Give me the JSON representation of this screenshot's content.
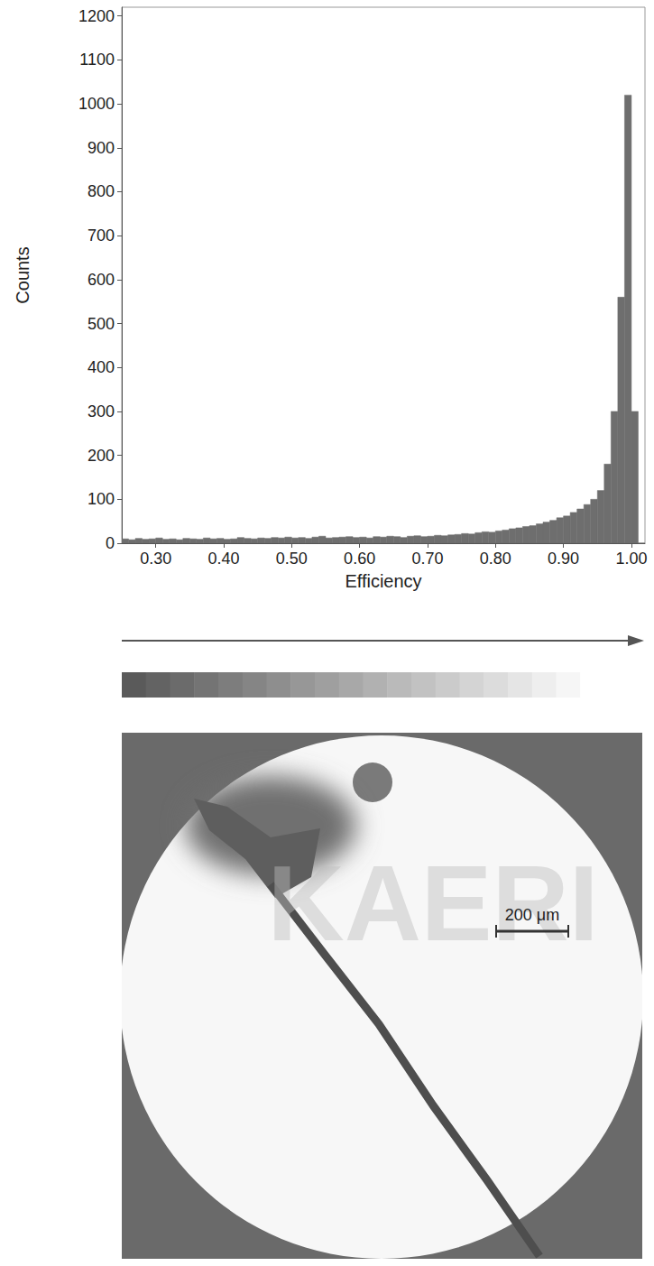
{
  "chart_data": {
    "type": "histogram",
    "x_label": "Efficiency",
    "y_label": "Counts",
    "bins": [
      0.25,
      0.26,
      0.27,
      0.28,
      0.29,
      0.3,
      0.31,
      0.32,
      0.33,
      0.34,
      0.35,
      0.36,
      0.37,
      0.38,
      0.39,
      0.4,
      0.41,
      0.42,
      0.43,
      0.44,
      0.45,
      0.46,
      0.47,
      0.48,
      0.49,
      0.5,
      0.51,
      0.52,
      0.53,
      0.54,
      0.55,
      0.56,
      0.57,
      0.58,
      0.59,
      0.6,
      0.61,
      0.62,
      0.63,
      0.64,
      0.65,
      0.66,
      0.67,
      0.68,
      0.69,
      0.7,
      0.71,
      0.72,
      0.73,
      0.74,
      0.75,
      0.76,
      0.77,
      0.78,
      0.79,
      0.8,
      0.81,
      0.82,
      0.83,
      0.84,
      0.85,
      0.86,
      0.87,
      0.88,
      0.89,
      0.9,
      0.91,
      0.92,
      0.93,
      0.94,
      0.95,
      0.96,
      0.97,
      0.98,
      0.99,
      1.0,
      1.01,
      1.02
    ],
    "counts": [
      10,
      8,
      11,
      9,
      10,
      12,
      9,
      10,
      8,
      11,
      10,
      9,
      12,
      10,
      11,
      9,
      10,
      13,
      11,
      10,
      12,
      11,
      13,
      12,
      14,
      12,
      13,
      11,
      14,
      16,
      12,
      13,
      14,
      15,
      13,
      14,
      12,
      15,
      14,
      16,
      15,
      13,
      16,
      17,
      15,
      16,
      18,
      17,
      19,
      20,
      22,
      21,
      24,
      26,
      25,
      28,
      30,
      33,
      35,
      38,
      40,
      44,
      48,
      52,
      58,
      62,
      70,
      78,
      88,
      100,
      120,
      180,
      300,
      560,
      1020,
      300,
      0
    ],
    "color": "#6e6e6e",
    "xlim": [
      0.25,
      1.02
    ],
    "xticks": [
      {
        "value": 0.3,
        "label": "0.30"
      },
      {
        "value": 0.4,
        "label": "0.40"
      },
      {
        "value": 0.5,
        "label": "0.50"
      },
      {
        "value": 0.6,
        "label": "0.60"
      },
      {
        "value": 0.7,
        "label": "0.70"
      },
      {
        "value": 0.8,
        "label": "0.80"
      },
      {
        "value": 0.9,
        "label": "0.90"
      },
      {
        "value": 1.0,
        "label": "1.00"
      }
    ],
    "ylim": [
      0,
      1220
    ],
    "yticks": [
      0,
      100,
      200,
      300,
      400,
      500,
      600,
      700,
      800,
      900,
      1000,
      1100,
      1200
    ],
    "grid": false
  },
  "map_image": {
    "watermark": "KAERI",
    "scale_bar": "200 μm"
  }
}
